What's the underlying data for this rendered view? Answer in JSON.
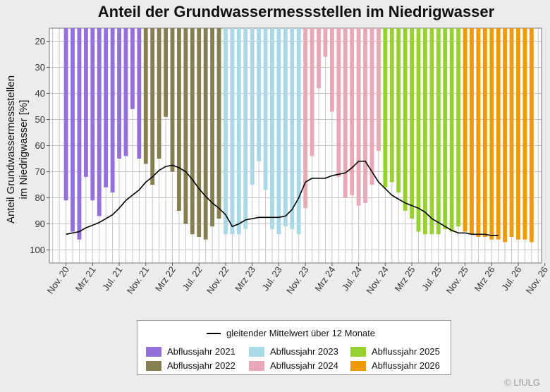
{
  "copyright": "© LfULG",
  "legend": {
    "line_label": "gleitender Mittelwert über 12 Monate",
    "items": [
      {
        "label": "Abflussjahr 2021",
        "color": "#9370db"
      },
      {
        "label": "Abflussjahr 2022",
        "color": "#857f4f"
      },
      {
        "label": "Abflussjahr 2023",
        "color": "#a9d8e6"
      },
      {
        "label": "Abflussjahr 2024",
        "color": "#e8a8b8"
      },
      {
        "label": "Abflussjahr 2025",
        "color": "#97d131"
      },
      {
        "label": "Abflussjahr 2026",
        "color": "#f09a0b"
      }
    ]
  },
  "chart_data": {
    "type": "bar",
    "title": "Anteil der Grundwassermessstellen im Niedrigwasser",
    "ylabel_lines": [
      "Anteil Grundwassermessstellen",
      "im Niedrigwasser [%]"
    ],
    "xlabel": "",
    "y_reversed": true,
    "ylim": [
      105,
      15
    ],
    "yticks": [
      20,
      30,
      40,
      50,
      60,
      70,
      80,
      90,
      100
    ],
    "xticks": [
      "Nov. 20",
      "Mrz 21",
      "Jul. 21",
      "Nov. 21",
      "Mrz 22",
      "Jul. 22",
      "Nov. 22",
      "Mrz 23",
      "Jul. 23",
      "Nov. 23",
      "Mrz 24",
      "Jul. 24",
      "Nov. 24",
      "Mrz 25",
      "Jul. 25",
      "Nov. 25",
      "Mrz 26",
      "Jul. 26",
      "Nov. 26"
    ],
    "grid": true,
    "series": [
      {
        "name": "Abflussjahr 2021",
        "values": [
          81,
          93,
          96,
          72,
          81,
          87,
          76,
          78,
          65,
          64,
          46,
          65
        ]
      },
      {
        "name": "Abflussjahr 2022",
        "values": [
          67,
          75,
          65,
          49,
          70,
          85,
          90,
          94,
          95,
          96,
          91,
          88
        ]
      },
      {
        "name": "Abflussjahr 2023",
        "values": [
          94,
          94,
          94,
          92,
          75,
          66,
          77,
          92,
          94,
          91,
          92,
          94
        ]
      },
      {
        "name": "Abflussjahr 2024",
        "values": [
          84,
          64,
          38,
          26,
          47,
          72,
          80,
          79,
          83,
          82,
          75,
          62
        ]
      },
      {
        "name": "Abflussjahr 2025",
        "values": [
          76,
          74,
          78,
          85,
          88,
          93,
          94,
          94,
          94,
          92,
          93,
          91
        ]
      },
      {
        "name": "Abflussjahr 2026",
        "values": [
          93,
          94,
          95,
          95,
          96,
          96,
          97,
          95,
          96,
          96,
          97
        ]
      }
    ],
    "moving_average": {
      "name": "gleitender Mittelwert über 12 Monate",
      "values": [
        94,
        93.5,
        93,
        91.5,
        90.5,
        89.5,
        88,
        86.5,
        84,
        81,
        79,
        77,
        74,
        72,
        69.5,
        68,
        67.5,
        68.5,
        70,
        73,
        76.5,
        79.5,
        82,
        84,
        86.5,
        91,
        90,
        88.5,
        88,
        87.5,
        87.5,
        87.5,
        87.5,
        87,
        84.5,
        80,
        74,
        72.5,
        72.5,
        72.5,
        71.5,
        71,
        70.5,
        68.5,
        66,
        66,
        70,
        74,
        76.5,
        79,
        80.5,
        82,
        83,
        84,
        85.5,
        88,
        89.5,
        91,
        92.5,
        93.5,
        93.5,
        94,
        94,
        94,
        94.5,
        94.5
      ]
    }
  }
}
